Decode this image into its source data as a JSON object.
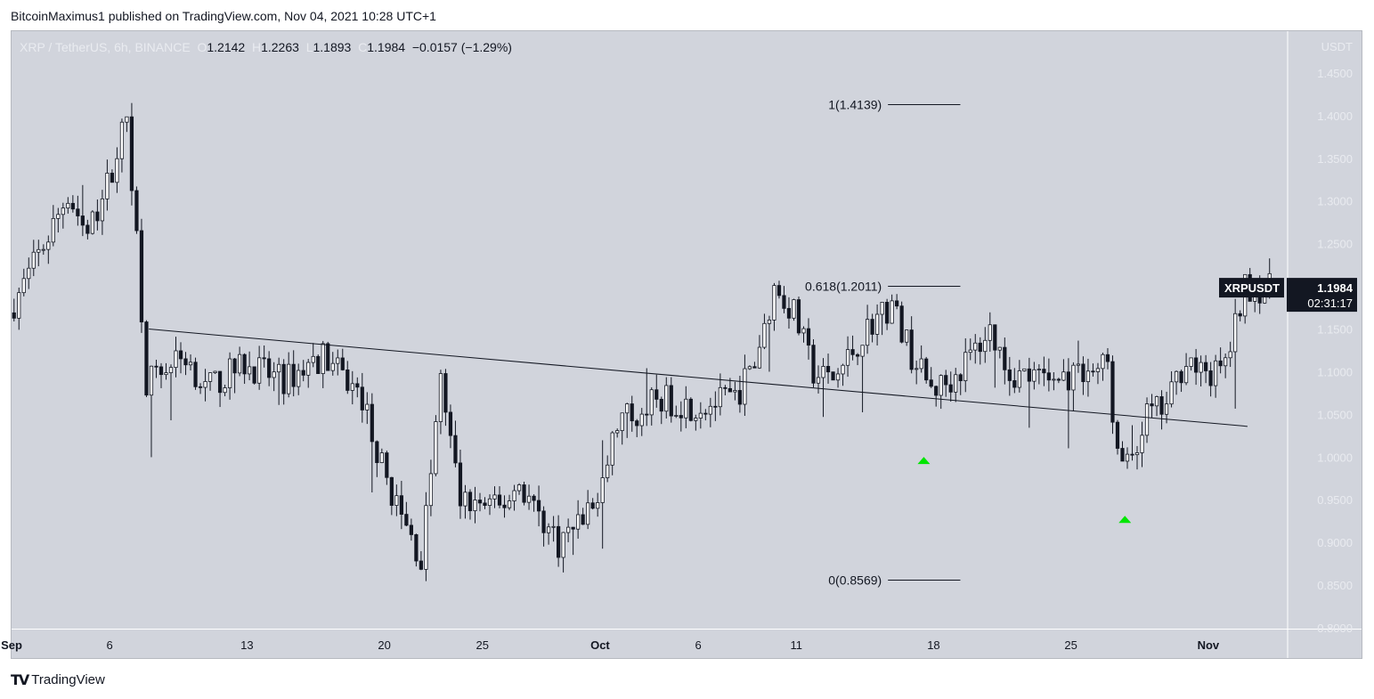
{
  "publisher": "BitcoinMaximus1 published on TradingView.com, Nov 04, 2021 10:28 UTC+1",
  "legend": {
    "symbol": "XRP / TetherUS, 6h, BINANCE",
    "o_key": "O",
    "o": "1.2142",
    "h_key": "H",
    "h": "1.2263",
    "l_key": "L",
    "l": "1.1893",
    "c_key": "C",
    "c": "1.1984",
    "change": "−0.0157 (−1.29%)"
  },
  "footer": {
    "brand": "TradingView",
    "logo": "tradingview-logo-icon"
  },
  "colors": {
    "background": "#d1d4dc",
    "bull": "#ffffff",
    "bear": "#131722",
    "marker": "#00e600",
    "price_tag": "#131722"
  },
  "chart_data": {
    "type": "candlestick",
    "symbol": "XRPUSDT",
    "y_axis_unit": "USDT",
    "ylim": [
      0.8,
      1.5
    ],
    "y_ticks": [
      "1.4500",
      "1.4000",
      "1.3500",
      "1.3000",
      "1.2500",
      "1.2000",
      "1.1500",
      "1.1000",
      "1.0500",
      "1.0000",
      "0.9500",
      "0.9000",
      "0.8500",
      "0.8000"
    ],
    "x_ticks": [
      {
        "label": "Sep",
        "date": "2021-09-01"
      },
      {
        "label": "6",
        "date": "2021-09-06"
      },
      {
        "label": "13",
        "date": "2021-09-13"
      },
      {
        "label": "20",
        "date": "2021-09-20"
      },
      {
        "label": "25",
        "date": "2021-09-25"
      },
      {
        "label": "Oct",
        "date": "2021-10-01"
      },
      {
        "label": "6",
        "date": "2021-10-06"
      },
      {
        "label": "11",
        "date": "2021-10-11"
      },
      {
        "label": "18",
        "date": "2021-10-18"
      },
      {
        "label": "25",
        "date": "2021-10-25"
      },
      {
        "label": "Nov",
        "date": "2021-11-01"
      }
    ],
    "x_range": [
      "2021-09-01",
      "2021-11-05"
    ],
    "price_tag": {
      "label": "XRPUSDT",
      "price": "1.1984",
      "countdown": "02:31:17"
    },
    "fib_levels": [
      {
        "label": "1(1.4139)",
        "value": 1.4139
      },
      {
        "label": "0.618(1.2011)",
        "value": 1.2011
      },
      {
        "label": "0(0.8569)",
        "value": 0.8569
      }
    ],
    "fib_date_range": [
      "2021-10-10",
      "2021-10-18"
    ],
    "trendline": {
      "start": {
        "date": "2021-09-08",
        "value": 1.151
      },
      "end": {
        "date": "2021-11-03",
        "value": 1.037
      }
    },
    "markers": [
      {
        "date": "2021-10-17T12:00",
        "value": 0.997,
        "shape": "up-triangle"
      },
      {
        "date": "2021-10-27T18:00",
        "value": 0.928,
        "shape": "up-triangle"
      }
    ],
    "anchors": [
      {
        "date": "2021-09-01",
        "price": 1.17
      },
      {
        "date": "2021-09-03",
        "price": 1.26
      },
      {
        "date": "2021-09-04",
        "price": 1.31
      },
      {
        "date": "2021-09-05",
        "price": 1.26
      },
      {
        "date": "2021-09-06",
        "price": 1.32
      },
      {
        "date": "2021-09-07",
        "price": 1.4
      },
      {
        "date": "2021-09-07T12:00",
        "price": 1.26
      },
      {
        "date": "2021-09-08",
        "price": 1.09
      },
      {
        "date": "2021-09-10",
        "price": 1.12
      },
      {
        "date": "2021-09-11",
        "price": 1.08
      },
      {
        "date": "2021-09-13",
        "price": 1.11
      },
      {
        "date": "2021-09-15",
        "price": 1.09
      },
      {
        "date": "2021-09-17",
        "price": 1.12
      },
      {
        "date": "2021-09-19",
        "price": 1.07
      },
      {
        "date": "2021-09-20",
        "price": 0.99
      },
      {
        "date": "2021-09-21",
        "price": 0.93
      },
      {
        "date": "2021-09-22",
        "price": 0.88
      },
      {
        "date": "2021-09-23",
        "price": 1.09
      },
      {
        "date": "2021-09-24",
        "price": 0.95
      },
      {
        "date": "2021-09-26",
        "price": 0.94
      },
      {
        "date": "2021-09-27",
        "price": 0.97
      },
      {
        "date": "2021-09-29",
        "price": 0.9
      },
      {
        "date": "2021-10-01",
        "price": 0.95
      },
      {
        "date": "2021-10-02",
        "price": 1.04
      },
      {
        "date": "2021-10-04",
        "price": 1.07
      },
      {
        "date": "2021-10-06",
        "price": 1.06
      },
      {
        "date": "2021-10-08",
        "price": 1.07
      },
      {
        "date": "2021-10-09",
        "price": 1.11
      },
      {
        "date": "2021-10-10",
        "price": 1.2
      },
      {
        "date": "2021-10-11",
        "price": 1.17
      },
      {
        "date": "2021-10-12",
        "price": 1.1
      },
      {
        "date": "2021-10-13",
        "price": 1.09
      },
      {
        "date": "2021-10-15",
        "price": 1.16
      },
      {
        "date": "2021-10-16",
        "price": 1.18
      },
      {
        "date": "2021-10-17",
        "price": 1.12
      },
      {
        "date": "2021-10-18",
        "price": 1.08
      },
      {
        "date": "2021-10-19",
        "price": 1.09
      },
      {
        "date": "2021-10-21",
        "price": 1.15
      },
      {
        "date": "2021-10-22",
        "price": 1.1
      },
      {
        "date": "2021-10-24",
        "price": 1.09
      },
      {
        "date": "2021-10-26",
        "price": 1.1
      },
      {
        "date": "2021-10-27",
        "price": 1.11
      },
      {
        "date": "2021-10-27T12:00",
        "price": 1.0
      },
      {
        "date": "2021-10-28",
        "price": 0.99
      },
      {
        "date": "2021-10-29",
        "price": 1.05
      },
      {
        "date": "2021-10-30",
        "price": 1.06
      },
      {
        "date": "2021-10-31",
        "price": 1.12
      },
      {
        "date": "2021-11-01",
        "price": 1.09
      },
      {
        "date": "2021-11-02",
        "price": 1.11
      },
      {
        "date": "2021-11-03",
        "price": 1.2
      },
      {
        "date": "2021-11-04",
        "price": 1.1984
      }
    ]
  }
}
